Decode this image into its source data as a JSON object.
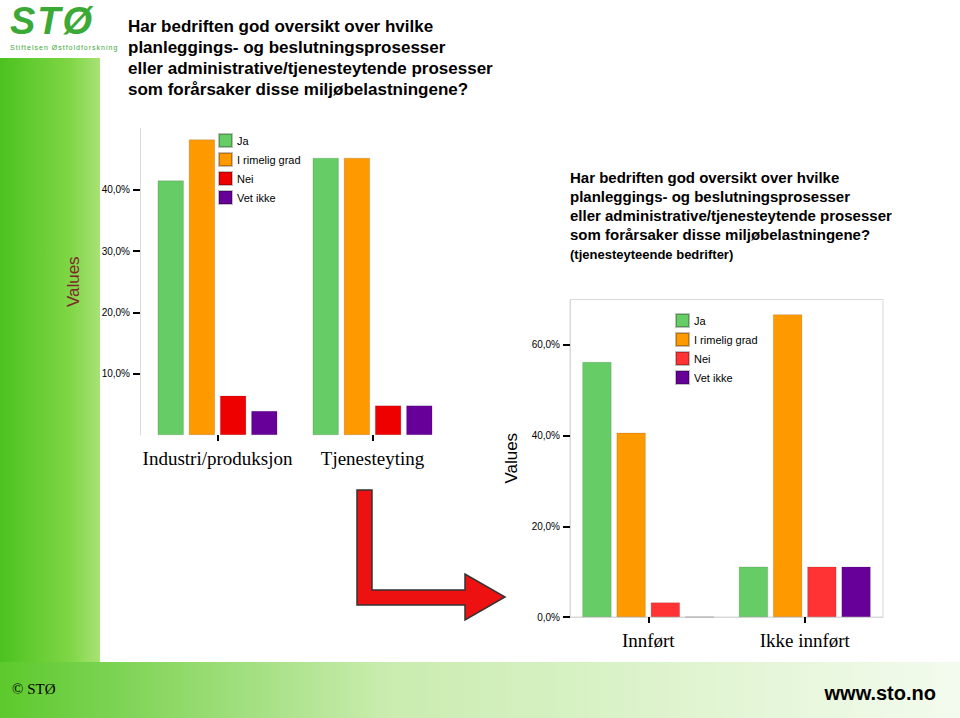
{
  "slide": {
    "logo_mark": "STØ",
    "logo_text": "Stiftelsen Østfoldforskning",
    "footer_left": "© STØ",
    "footer_right": "www.sto.no"
  },
  "chart_data": [
    {
      "type": "bar",
      "title": "Har bedriften god oversikt over hvilke\nplanleggings- og beslutningsprosesser\neller administrative/tjenesteytende prosesser\nsom forårsaker disse miljøbelastningene?",
      "y_label": "Values",
      "categories": [
        "Industri/produksjon",
        "Tjenesteyting"
      ],
      "series": [
        {
          "name": "Ja",
          "color": "#66cc66",
          "values": [
            41.5,
            45.2
          ]
        },
        {
          "name": "I rimelig grad",
          "color": "#ff9900",
          "values": [
            48.2,
            45.2
          ]
        },
        {
          "name": "Nei",
          "color": "#ee0000",
          "values": [
            6.4,
            4.8
          ]
        },
        {
          "name": "Vet ikke",
          "color": "#660099",
          "values": [
            3.9,
            4.8
          ]
        }
      ],
      "ylim": [
        0,
        50
      ],
      "yticks": [
        {
          "value": 10,
          "label": "10,0%"
        },
        {
          "value": 20,
          "label": "20,0%"
        },
        {
          "value": 30,
          "label": "30,0%"
        },
        {
          "value": 40,
          "label": "40,0%"
        }
      ],
      "grid": false,
      "legend": "top"
    },
    {
      "type": "bar",
      "title": "Har bedriften god oversikt over hvilke\nplanleggings- og beslutningsprosesser\neller administrative/tjenesteytende prosesser\nsom forårsaker disse miljøbelastningene?",
      "subtitle": "(tjenesteyteende bedrifter)",
      "y_label": "Values",
      "categories": [
        "Innført",
        "Ikke innført"
      ],
      "series": [
        {
          "name": "Ja",
          "color": "#66cc66",
          "values": [
            56.2,
            11.1
          ]
        },
        {
          "name": "I rimelig grad",
          "color": "#ff9900",
          "values": [
            40.6,
            66.7
          ]
        },
        {
          "name": "Nei",
          "color": "#ff3333",
          "values": [
            3.2,
            11.1
          ]
        },
        {
          "name": "Vet ikke",
          "color": "#660099",
          "values": [
            0,
            11.1
          ]
        }
      ],
      "ylim": [
        0,
        70
      ],
      "yticks": [
        {
          "value": 0,
          "label": "0,0%"
        },
        {
          "value": 20,
          "label": "20,0%"
        },
        {
          "value": 40,
          "label": "40,0%"
        },
        {
          "value": 60,
          "label": "60,0%"
        }
      ],
      "grid": false,
      "legend": "top"
    }
  ]
}
